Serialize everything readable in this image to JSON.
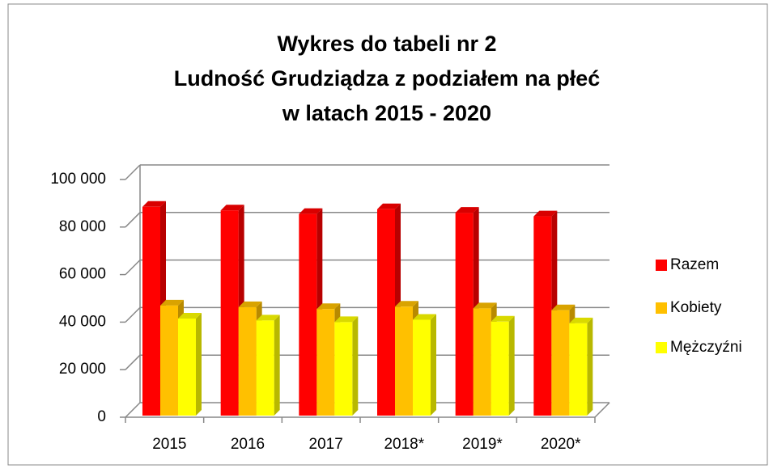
{
  "chart_data": {
    "type": "bar3d",
    "title": [
      "Wykres do tabeli nr 2",
      "Ludność Grudziądza z podziałem na płeć",
      "w latach 2015 - 2020"
    ],
    "categories": [
      "2015",
      "2016",
      "2017",
      "2018*",
      "2019*",
      "2020*"
    ],
    "series": [
      {
        "name": "Razem",
        "color": "#ff0000",
        "values": [
          88500,
          87000,
          85500,
          87500,
          86000,
          84500
        ]
      },
      {
        "name": "Kobiety",
        "color": "#ffc000",
        "values": [
          47000,
          46300,
          45500,
          46500,
          45800,
          45000
        ]
      },
      {
        "name": "Mężczyźni",
        "color": "#ffff00",
        "values": [
          41500,
          40700,
          40000,
          41000,
          40200,
          39500
        ]
      }
    ],
    "ylim": [
      0,
      100000
    ],
    "yticks": [
      0,
      {
        "value": 20000,
        "label": "20 000"
      },
      {
        "value": 40000,
        "label": "40 000"
      },
      {
        "value": 60000,
        "label": "60 000"
      },
      {
        "value": 80000,
        "label": "80 000"
      },
      {
        "value": 100000,
        "label": "100 000"
      }
    ],
    "grid": true,
    "legend": "right"
  }
}
